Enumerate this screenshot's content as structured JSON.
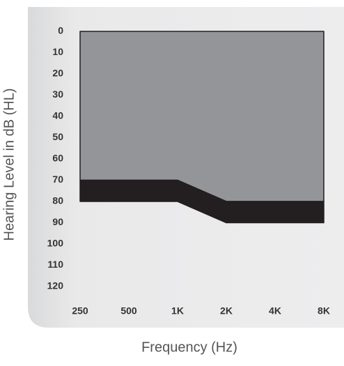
{
  "chart_data": {
    "type": "area",
    "stacked": true,
    "y_inverted": true,
    "x_label": "Frequency (Hz)",
    "y_label": "Hearing Level in dB (HL)",
    "categories": [
      "250",
      "500",
      "1K",
      "2K",
      "4K",
      "8K"
    ],
    "series": [
      {
        "color": "#939598",
        "values": [
          70,
          70,
          70,
          80,
          80,
          80
        ]
      },
      {
        "color": "#231f20",
        "values": [
          10,
          10,
          10,
          10,
          10,
          10
        ]
      }
    ],
    "ylim": [
      0,
      120
    ],
    "yticks": [
      0,
      10,
      20,
      30,
      40,
      50,
      60,
      70,
      80,
      90,
      100,
      110,
      120
    ]
  }
}
